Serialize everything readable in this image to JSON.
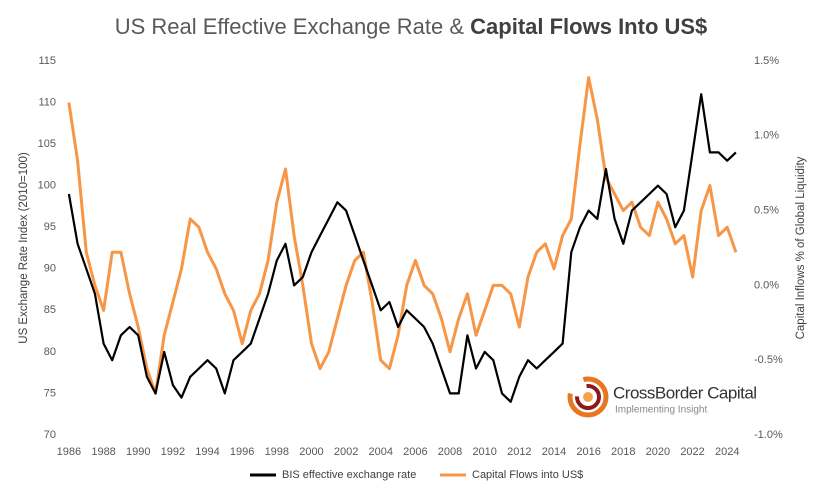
{
  "chart_data": {
    "type": "line",
    "title": "US Real Effective Exchange Rate &",
    "title_bold": "Capital Flows Into US$",
    "y_label": "US Exchange Rate Index (2010=100)",
    "y2_label": "Capital Inflows % of Global Liquidity",
    "x": [
      1986.0,
      1986.5,
      1987.0,
      1987.5,
      1988.0,
      1988.5,
      1989.0,
      1989.5,
      1990.0,
      1990.5,
      1991.0,
      1991.5,
      1992.0,
      1992.5,
      1993.0,
      1993.5,
      1994.0,
      1994.5,
      1995.0,
      1995.5,
      1996.0,
      1996.5,
      1997.0,
      1997.5,
      1998.0,
      1998.5,
      1999.0,
      1999.5,
      2000.0,
      2000.5,
      2001.0,
      2001.5,
      2002.0,
      2002.5,
      2003.0,
      2003.5,
      2004.0,
      2004.5,
      2005.0,
      2005.5,
      2006.0,
      2006.5,
      2007.0,
      2007.5,
      2008.0,
      2008.5,
      2009.0,
      2009.5,
      2010.0,
      2010.5,
      2011.0,
      2011.5,
      2012.0,
      2012.5,
      2013.0,
      2013.5,
      2014.0,
      2014.5,
      2015.0,
      2015.5,
      2016.0,
      2016.5,
      2017.0,
      2017.5,
      2018.0,
      2018.5,
      2019.0,
      2019.5,
      2020.0,
      2020.5,
      2021.0,
      2021.5,
      2022.0,
      2022.5,
      2023.0,
      2023.5,
      2024.0,
      2024.5
    ],
    "series": [
      {
        "name": "BIS effective exchange rate",
        "color": "#000000",
        "axis": "y",
        "values": [
          99,
          93,
          90,
          87,
          81,
          79,
          82,
          83,
          82,
          77,
          75,
          80,
          76,
          74.5,
          77,
          78,
          79,
          78,
          75,
          79,
          80,
          81,
          84,
          87,
          91,
          93,
          88,
          89,
          92,
          94,
          96,
          98,
          97,
          94,
          91,
          88,
          85,
          86,
          83,
          85,
          84,
          83,
          81,
          78,
          75,
          75,
          82,
          78,
          80,
          79,
          75,
          74,
          77,
          79,
          78,
          79,
          80,
          81,
          92,
          95,
          97,
          96,
          102,
          96,
          93,
          97,
          98,
          99,
          100,
          99,
          95,
          97,
          104,
          111,
          104,
          104,
          103,
          104
        ]
      },
      {
        "name": "Capital Flows into US$",
        "color": "#f79646",
        "axis": "y2",
        "values": [
          1.222,
          0.833,
          0.222,
          0.0,
          -0.167,
          0.222,
          0.222,
          -0.056,
          -0.278,
          -0.556,
          -0.722,
          -0.333,
          -0.111,
          0.111,
          0.444,
          0.389,
          0.222,
          0.111,
          -0.056,
          -0.167,
          -0.389,
          -0.167,
          -0.056,
          0.167,
          0.556,
          0.778,
          0.333,
          0.0,
          -0.389,
          -0.556,
          -0.444,
          -0.222,
          0.0,
          0.167,
          0.222,
          -0.111,
          -0.5,
          -0.556,
          -0.333,
          0.0,
          0.167,
          0.0,
          -0.056,
          -0.222,
          -0.444,
          -0.222,
          -0.056,
          -0.333,
          -0.167,
          0.0,
          0.0,
          -0.056,
          -0.278,
          0.056,
          0.222,
          0.278,
          0.111,
          0.333,
          0.444,
          0.944,
          1.389,
          1.111,
          0.722,
          0.611,
          0.5,
          0.556,
          0.389,
          0.333,
          0.556,
          0.444,
          0.278,
          0.333,
          0.056,
          0.5,
          0.667,
          0.333,
          0.389,
          0.222
        ]
      }
    ],
    "xlim": [
      1985.6,
      2025.2
    ],
    "xticks": [
      1986,
      1988,
      1990,
      1992,
      1994,
      1996,
      1998,
      2000,
      2002,
      2004,
      2006,
      2008,
      2010,
      2012,
      2014,
      2016,
      2018,
      2020,
      2022,
      2024
    ],
    "ylim": [
      70,
      115
    ],
    "yticks": [
      70,
      75,
      80,
      85,
      90,
      95,
      100,
      105,
      110,
      115
    ],
    "y2lim": [
      -1,
      1.5
    ],
    "y2ticks": [
      {
        "value": -1,
        "label": "-1.0%"
      },
      {
        "value": -0.5,
        "label": "-0.5%"
      },
      {
        "value": 0,
        "label": "0.0%"
      },
      {
        "value": 0.5,
        "label": "0.5%"
      },
      {
        "value": 1,
        "label": "1.0%"
      },
      {
        "value": 1.5,
        "label": "1.5%"
      }
    ],
    "grid": false,
    "legend": "bottom",
    "logo": {
      "name": "CrossBorder Capital",
      "tagline": "Implementing Insight"
    }
  }
}
